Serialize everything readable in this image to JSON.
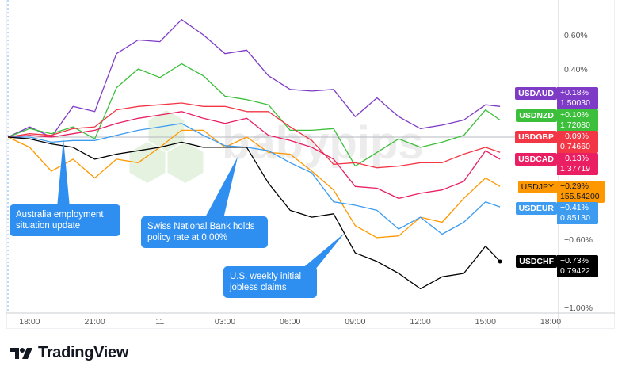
{
  "chart_data": {
    "type": "line",
    "title": "",
    "xlabel": "",
    "ylabel": "",
    "x": [
      "17:00",
      "18:00",
      "19:00",
      "20:00",
      "21:00",
      "22:00",
      "23:00",
      "00:00",
      "01:00",
      "02:00",
      "03:00",
      "04:00",
      "05:00",
      "06:00",
      "07:00",
      "08:00",
      "09:00",
      "10:00",
      "11:00",
      "12:00",
      "13:00",
      "14:00",
      "15:00",
      "15:40"
    ],
    "x_tick_labels": [
      "18:00",
      "21:00",
      "11",
      "03:00",
      "06:00",
      "09:00",
      "12:00",
      "15:00",
      "18:00"
    ],
    "y_tick_labels": [
      "0.60%",
      "0.40%",
      "−0.60%",
      "−1.00%"
    ],
    "y_unit": "%",
    "ylim": [
      -1.03,
      0.81
    ],
    "grid": false,
    "zero_line": true,
    "series": [
      {
        "name": "USDAUD",
        "color": "#7e3cc6",
        "change": "+0.18%",
        "price": "1.50030",
        "values": [
          0,
          0.06,
          0,
          0.18,
          0.15,
          0.49,
          0.57,
          0.56,
          0.69,
          0.6,
          0.49,
          0.51,
          0.36,
          0.28,
          0.27,
          0.28,
          0.12,
          0.23,
          0.12,
          0.05,
          0.07,
          0.1,
          0.19,
          0.18
        ]
      },
      {
        "name": "USDNZD",
        "color": "#3cbf3a",
        "change": "+0.10%",
        "price": "1.72080",
        "values": [
          0,
          0.05,
          0.02,
          0.06,
          -0.01,
          0.29,
          0.4,
          0.35,
          0.43,
          0.36,
          0.24,
          0.22,
          0.19,
          0.04,
          0.04,
          0.05,
          -0.17,
          -0.09,
          -0.01,
          -0.06,
          -0.03,
          0.01,
          0.16,
          0.1
        ]
      },
      {
        "name": "USDGBP",
        "color": "#f23645",
        "change": "−0.09%",
        "price": "0.74660",
        "values": [
          0,
          0.02,
          0.01,
          0.05,
          0.06,
          0.16,
          0.18,
          0.19,
          0.2,
          0.18,
          0.18,
          0.15,
          0.15,
          0.06,
          -0.02,
          -0.16,
          -0.15,
          -0.18,
          -0.17,
          -0.15,
          -0.15,
          -0.1,
          -0.06,
          -0.09
        ]
      },
      {
        "name": "USDCAD",
        "color": "#e91e63",
        "change": "−0.13%",
        "price": "1.37719",
        "values": [
          0,
          0.01,
          0,
          0.02,
          0.04,
          0.08,
          0.11,
          0.13,
          0.15,
          0.11,
          0.08,
          0.11,
          0.01,
          -0.02,
          -0.06,
          -0.13,
          -0.29,
          -0.3,
          -0.36,
          -0.33,
          -0.31,
          -0.26,
          -0.08,
          -0.13
        ]
      },
      {
        "name": "USDJPY",
        "color": "#ff9800",
        "change": "−0.29%",
        "price": "155.54200",
        "values": [
          0,
          -0.06,
          -0.2,
          -0.13,
          -0.24,
          -0.13,
          -0.15,
          -0.06,
          0.04,
          0.04,
          -0.06,
          0,
          -0.09,
          -0.1,
          -0.2,
          -0.31,
          -0.52,
          -0.59,
          -0.58,
          -0.47,
          -0.5,
          -0.36,
          -0.24,
          -0.29
        ]
      },
      {
        "name": "USDEUR",
        "color": "#3d9cf0",
        "change": "−0.41%",
        "price": "0.85130",
        "values": [
          0,
          0,
          -0.03,
          -0.02,
          -0.02,
          0.01,
          0.04,
          0.06,
          0.08,
          0.01,
          -0.05,
          -0.06,
          -0.08,
          -0.15,
          -0.21,
          -0.38,
          -0.4,
          -0.43,
          -0.54,
          -0.47,
          -0.57,
          -0.5,
          -0.38,
          -0.41
        ]
      },
      {
        "name": "USDCHF",
        "color": "#000000",
        "change": "−0.73%",
        "price": "0.79422",
        "values": [
          0,
          -0.01,
          -0.04,
          -0.06,
          -0.13,
          -0.1,
          -0.08,
          -0.06,
          -0.03,
          -0.06,
          -0.06,
          -0.06,
          -0.27,
          -0.43,
          -0.47,
          -0.45,
          -0.68,
          -0.73,
          -0.8,
          -0.89,
          -0.82,
          -0.8,
          -0.64,
          -0.73
        ]
      }
    ],
    "annotations": [
      {
        "text": "Australia employment situation update",
        "time": "19:40"
      },
      {
        "text": "Swiss National Bank holds policy rate at 0.00%",
        "time": "02:20"
      },
      {
        "text": "U.S. weekly initial jobless claims",
        "time": "08:30"
      }
    ]
  },
  "annotations_text": {
    "aus_line1": "Australia employment",
    "aus_line2": "situation update",
    "snb_line1": "Swiss National Bank holds",
    "snb_line2": "policy rate at 0.00%",
    "us_line1": "U.S. weekly initial",
    "us_line2": "jobless claims"
  },
  "watermark": "babypips",
  "brand": {
    "name": "TradingView",
    "icon": "tradingview-logo-icon"
  }
}
